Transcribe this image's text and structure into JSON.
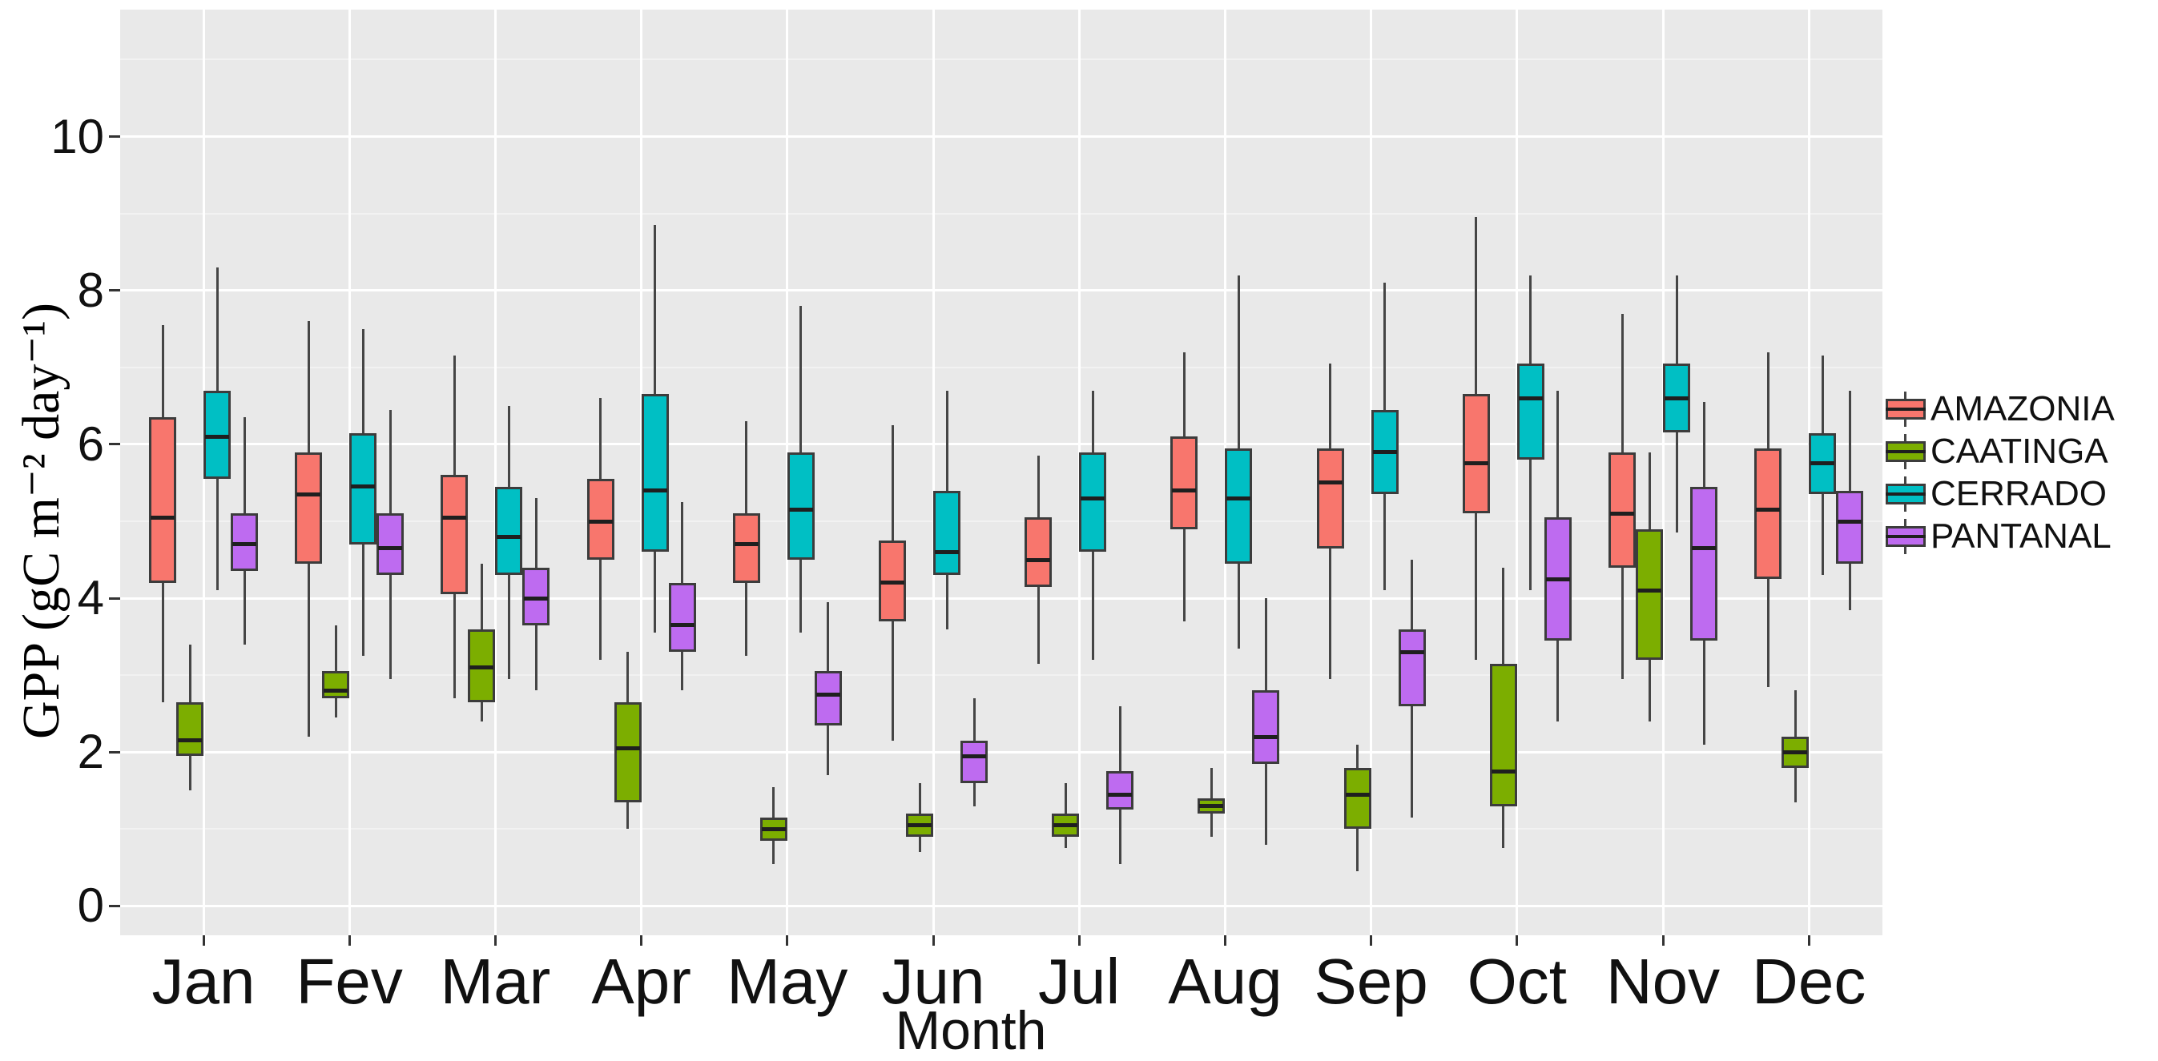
{
  "figure": {
    "background": "#ffffff",
    "panel_background": "#e9e9e9",
    "grid_major_color": "#ffffff",
    "grid_minor_color": "#f2f2f2",
    "box_border_color": "#3c3c3c",
    "median_color": "#1f1f1f",
    "whisker_color": "#454545"
  },
  "axes": {
    "y": {
      "title": "GPP (gC m⁻² day⁻¹)",
      "ticks": [
        0,
        2,
        4,
        6,
        8,
        10
      ],
      "minor_ticks": [
        1,
        3,
        5,
        7,
        9,
        11
      ],
      "range": [
        -0.38,
        11.65
      ]
    },
    "x": {
      "title": "Month",
      "categories": [
        "Jan",
        "Fev",
        "Mar",
        "Apr",
        "May",
        "Jun",
        "Jul",
        "Aug",
        "Sep",
        "Oct",
        "Nov",
        "Dec"
      ]
    }
  },
  "legend": {
    "position": "right",
    "key_icon": "boxplot-glyph-icon",
    "entries": [
      "AMAZONIA",
      "CAATINGA",
      "CERRADO",
      "PANTANAL"
    ]
  },
  "chart_data": {
    "type": "boxplot",
    "title": "",
    "xlabel": "Month",
    "ylabel": "GPP (gC m⁻² day⁻¹)",
    "ylim": [
      -0.38,
      11.65
    ],
    "grid": true,
    "legend_position": "right",
    "categories": [
      "Jan",
      "Fev",
      "Mar",
      "Apr",
      "May",
      "Jun",
      "Jul",
      "Aug",
      "Sep",
      "Oct",
      "Nov",
      "Dec"
    ],
    "stats_order": [
      "min",
      "q1",
      "median",
      "q3",
      "max"
    ],
    "series": [
      {
        "name": "AMAZONIA",
        "color": "#F8766D",
        "stats": [
          [
            2.65,
            4.2,
            5.05,
            6.35,
            7.55
          ],
          [
            2.2,
            4.45,
            5.35,
            5.9,
            7.6
          ],
          [
            2.7,
            4.05,
            5.05,
            5.6,
            7.15
          ],
          [
            3.2,
            4.5,
            5.0,
            5.55,
            6.6
          ],
          [
            3.25,
            4.2,
            4.7,
            5.1,
            6.3
          ],
          [
            2.15,
            3.7,
            4.2,
            4.75,
            6.25
          ],
          [
            3.15,
            4.15,
            4.5,
            5.05,
            5.85
          ],
          [
            3.7,
            4.9,
            5.4,
            6.1,
            7.2
          ],
          [
            2.95,
            4.65,
            5.5,
            5.95,
            7.05
          ],
          [
            3.2,
            5.1,
            5.75,
            6.65,
            8.95
          ],
          [
            2.95,
            4.4,
            5.1,
            5.9,
            7.7
          ],
          [
            2.85,
            4.25,
            5.15,
            5.95,
            7.2
          ]
        ]
      },
      {
        "name": "CAATINGA",
        "color": "#7CAE00",
        "stats": [
          [
            1.5,
            1.95,
            2.15,
            2.65,
            3.4
          ],
          [
            2.45,
            2.7,
            2.8,
            3.05,
            3.65
          ],
          [
            2.4,
            2.65,
            3.1,
            3.6,
            4.45
          ],
          [
            1.0,
            1.35,
            2.05,
            2.65,
            3.3
          ],
          [
            0.55,
            0.85,
            1.0,
            1.15,
            1.55
          ],
          [
            0.7,
            0.9,
            1.05,
            1.2,
            1.6
          ],
          [
            0.75,
            0.9,
            1.05,
            1.2,
            1.6
          ],
          [
            0.9,
            1.2,
            1.3,
            1.4,
            1.8
          ],
          [
            0.45,
            1.0,
            1.45,
            1.8,
            2.1
          ],
          [
            0.75,
            1.3,
            1.75,
            3.15,
            4.4
          ],
          [
            2.4,
            3.2,
            4.1,
            4.9,
            5.9
          ],
          [
            1.35,
            1.8,
            2.0,
            2.2,
            2.8
          ]
        ]
      },
      {
        "name": "CERRADO",
        "color": "#00BFC4",
        "stats": [
          [
            4.1,
            5.55,
            6.1,
            6.7,
            8.3
          ],
          [
            3.25,
            4.7,
            5.45,
            6.15,
            7.5
          ],
          [
            2.95,
            4.3,
            4.8,
            5.45,
            6.5
          ],
          [
            3.55,
            4.6,
            5.4,
            6.65,
            8.85
          ],
          [
            3.55,
            4.5,
            5.15,
            5.9,
            7.8
          ],
          [
            3.6,
            4.3,
            4.6,
            5.4,
            6.7
          ],
          [
            3.2,
            4.6,
            5.3,
            5.9,
            6.7
          ],
          [
            3.35,
            4.45,
            5.3,
            5.95,
            8.2
          ],
          [
            4.1,
            5.35,
            5.9,
            6.45,
            8.1
          ],
          [
            4.1,
            5.8,
            6.6,
            7.05,
            8.2
          ],
          [
            4.85,
            6.15,
            6.6,
            7.05,
            8.2
          ],
          [
            4.3,
            5.35,
            5.75,
            6.15,
            7.15
          ]
        ]
      },
      {
        "name": "PANTANAL",
        "color": "#BE6BF0",
        "stats": [
          [
            3.4,
            4.35,
            4.7,
            5.1,
            6.35
          ],
          [
            2.95,
            4.3,
            4.65,
            5.1,
            6.45
          ],
          [
            2.8,
            3.65,
            4.0,
            4.4,
            5.3
          ],
          [
            2.8,
            3.3,
            3.65,
            4.2,
            5.25
          ],
          [
            1.7,
            2.35,
            2.75,
            3.05,
            3.95
          ],
          [
            1.3,
            1.6,
            1.95,
            2.15,
            2.7
          ],
          [
            0.55,
            1.25,
            1.45,
            1.75,
            2.6
          ],
          [
            0.8,
            1.85,
            2.2,
            2.8,
            4.0
          ],
          [
            1.15,
            2.6,
            3.3,
            3.6,
            4.5
          ],
          [
            2.4,
            3.45,
            4.25,
            5.05,
            6.7
          ],
          [
            2.1,
            3.45,
            4.65,
            5.45,
            6.55
          ],
          [
            3.85,
            4.45,
            5.0,
            5.4,
            6.7
          ]
        ]
      }
    ]
  }
}
